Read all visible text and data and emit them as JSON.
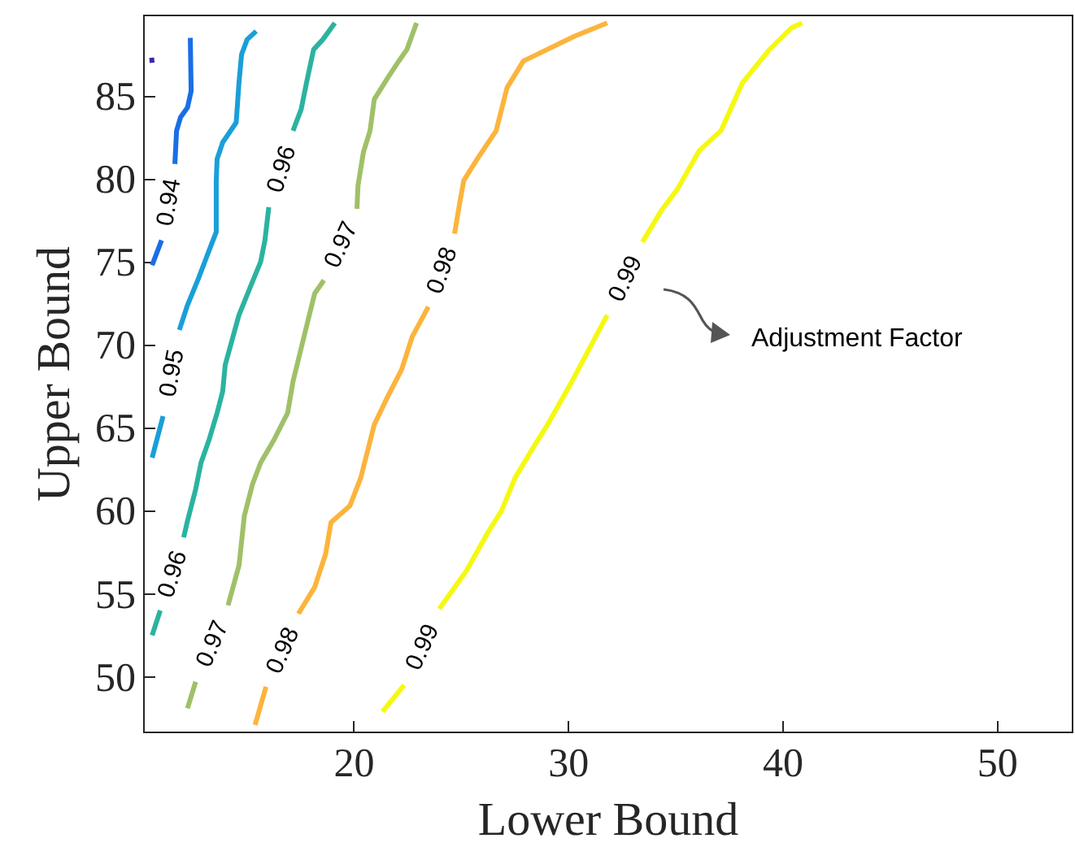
{
  "chart_data": {
    "type": "line",
    "xlabel": "Lower Bound",
    "ylabel": "Upper Bound",
    "xlim": [
      10.2,
      53.5
    ],
    "ylim": [
      46.7,
      89.9
    ],
    "xticks": [
      20,
      30,
      40,
      50
    ],
    "yticks": [
      50,
      55,
      60,
      65,
      70,
      75,
      80,
      85
    ],
    "grid": false,
    "marker": "none",
    "line_style": "solid",
    "series": [
      {
        "color": "#3e26a8",
        "x": [
          10.6,
          10.62
        ],
        "values": [
          87.3,
          87.0
        ]
      },
      {
        "name": "0.94",
        "color": "#1a6ee6",
        "x": [
          12.4,
          12.44,
          12.27,
          11.94,
          11.76,
          11.68,
          11.46,
          11.06,
          10.62
        ],
        "values": [
          88.5,
          85.3,
          84.3,
          83.7,
          82.9,
          80.9,
          null,
          76.3,
          74.8
        ]
      },
      {
        "name": "0.95",
        "color": "#1a9fd8",
        "x": [
          15.47,
          15.05,
          14.79,
          14.67,
          14.54,
          13.91,
          13.65,
          13.61,
          13.61,
          13.61,
          13.28,
          12.78,
          12.27,
          11.89,
          11.64,
          11.13,
          10.62
        ],
        "values": [
          88.9,
          88.4,
          87.5,
          85.8,
          83.4,
          82.2,
          81.2,
          79.9,
          78.3,
          76.8,
          75.7,
          74.0,
          72.4,
          70.9,
          null,
          65.7,
          63.2
        ]
      },
      {
        "name": "0.96",
        "color": "#2bb3a0",
        "x": [
          19.14,
          18.58,
          18.15,
          17.82,
          17.57,
          17.19,
          16.81,
          16.06,
          15.88,
          15.68,
          15.17,
          14.67,
          14.03,
          13.91,
          13.65,
          13.28,
          12.9,
          12.65,
          12.27,
          12.09,
          11.64,
          11.0,
          10.62
        ],
        "values": [
          89.4,
          88.4,
          87.8,
          85.8,
          84.2,
          82.9,
          null,
          78.3,
          76.3,
          75.0,
          73.4,
          71.8,
          68.8,
          67.2,
          65.9,
          64.3,
          62.9,
          61.3,
          59.4,
          58.4,
          null,
          54.0,
          52.5
        ]
      },
      {
        "name": "0.97",
        "color": "#a0c068",
        "x": [
          22.95,
          22.5,
          22.12,
          21.61,
          20.98,
          20.78,
          20.47,
          20.22,
          20.17,
          19.47,
          18.63,
          18.2,
          17.95,
          17.57,
          17.19,
          16.94,
          16.31,
          15.68,
          15.3,
          14.92,
          14.67,
          14.54,
          14.16,
          13.53,
          12.65,
          12.27
        ],
        "values": [
          89.4,
          87.8,
          87.1,
          86.1,
          84.8,
          82.9,
          81.6,
          79.6,
          78.2,
          null,
          73.9,
          73.1,
          71.8,
          69.8,
          67.8,
          65.9,
          64.3,
          62.9,
          61.6,
          59.7,
          56.7,
          56.1,
          54.3,
          null,
          49.7,
          48.1
        ]
      },
      {
        "name": "0.98",
        "color": "#fcb43c",
        "x": [
          31.84,
          30.32,
          27.93,
          27.17,
          26.66,
          25.78,
          25.15,
          24.97,
          24.72,
          24.26,
          23.5,
          22.75,
          22.25,
          21.61,
          20.98,
          20.35,
          19.84,
          18.96,
          18.71,
          18.2,
          17.44,
          16.68,
          15.93,
          15.42
        ],
        "values": [
          89.4,
          88.6,
          87.1,
          85.5,
          82.9,
          81.2,
          79.9,
          78.6,
          76.7,
          null,
          72.3,
          70.5,
          68.5,
          66.9,
          65.2,
          62.0,
          60.3,
          59.3,
          57.4,
          55.4,
          53.8,
          null,
          49.4,
          47.1
        ]
      },
      {
        "name": "0.99",
        "color": "#f5f90f",
        "x": [
          40.93,
          40.43,
          39.41,
          38.15,
          37.14,
          36.13,
          35.12,
          34.37,
          33.48,
          32.72,
          31.84,
          30.07,
          29.06,
          28.43,
          27.55,
          26.91,
          26.28,
          25.28,
          24.01,
          23.25,
          22.37,
          21.36
        ],
        "values": [
          89.4,
          89.1,
          87.8,
          85.8,
          82.9,
          81.7,
          79.4,
          78.1,
          76.2,
          null,
          71.8,
          67.5,
          65.2,
          63.9,
          62.0,
          60.0,
          58.7,
          56.4,
          54.1,
          null,
          49.5,
          47.9
        ]
      }
    ],
    "annotations": [
      "Adjustment Factor"
    ]
  }
}
